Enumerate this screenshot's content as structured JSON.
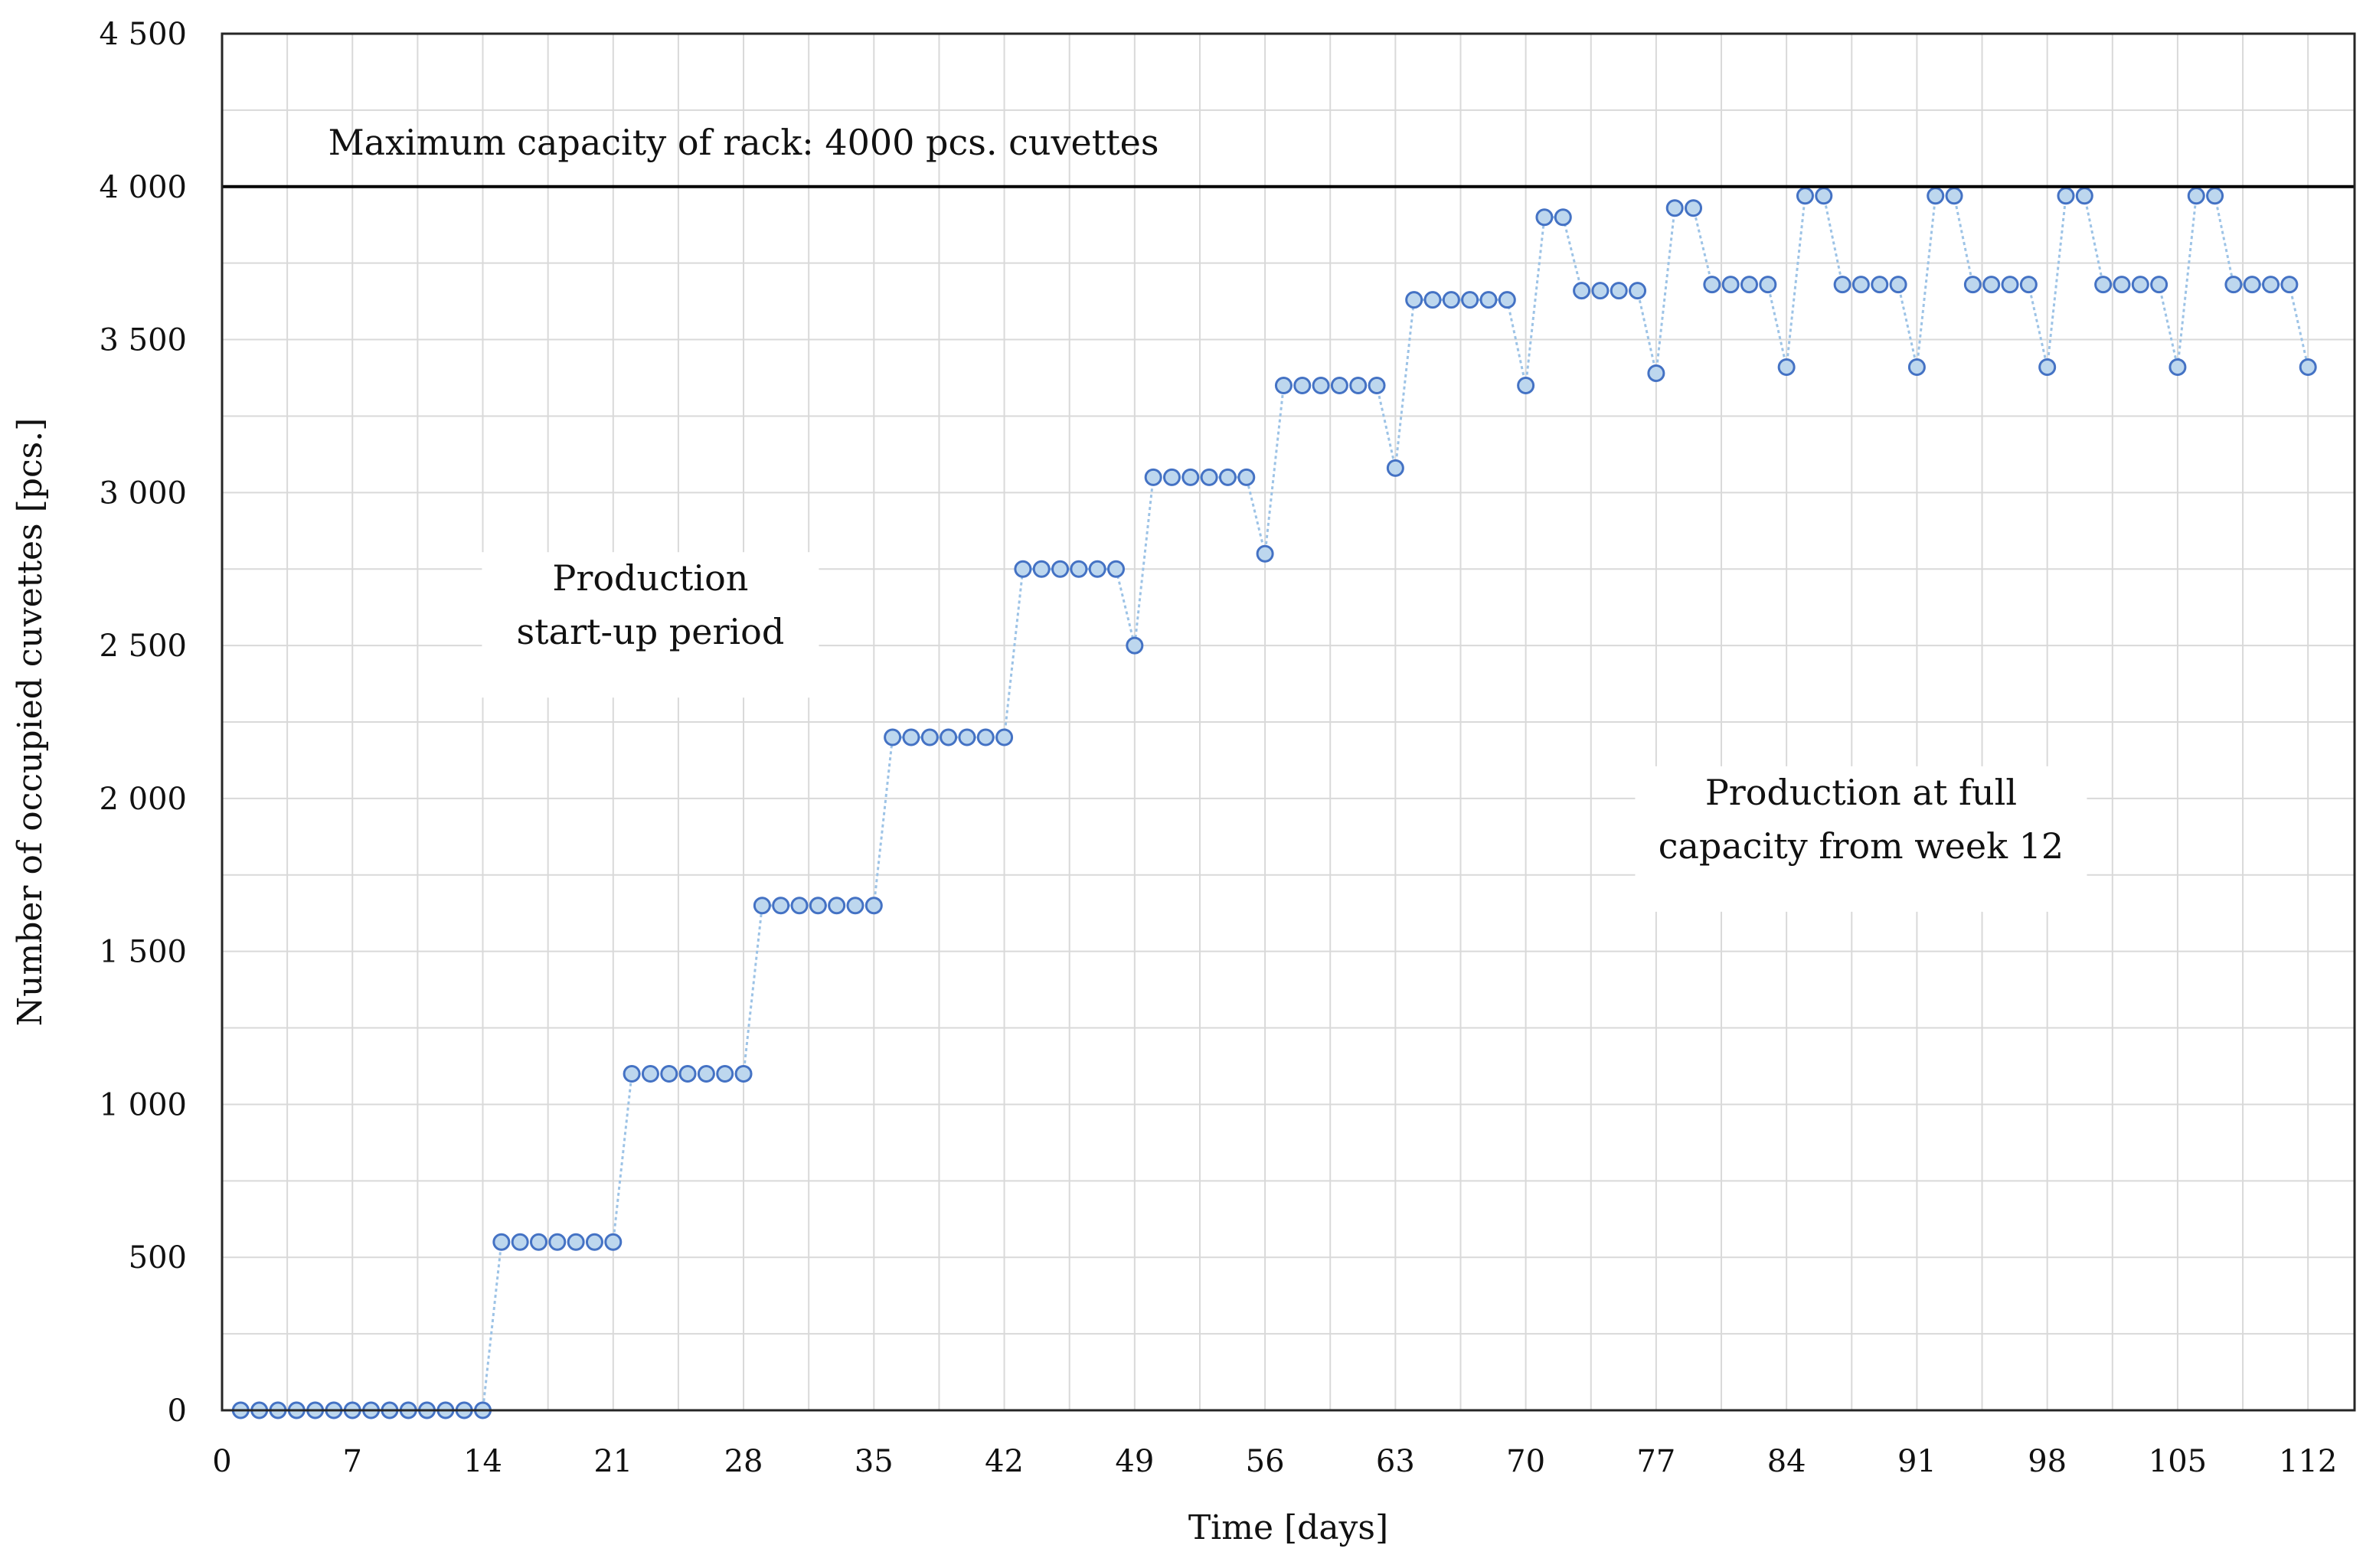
{
  "chart_data": {
    "type": "line",
    "title": "",
    "xlabel": "Time [days]",
    "ylabel": "Number of occupied cuvettes  [pcs.]",
    "xlim": [
      0,
      114.5
    ],
    "ylim": [
      0,
      4500
    ],
    "x_ticks": [
      0,
      7,
      14,
      21,
      28,
      35,
      42,
      49,
      56,
      63,
      70,
      77,
      84,
      91,
      98,
      105,
      112
    ],
    "x_tick_labels": [
      "0",
      "7",
      "14",
      "21",
      "28",
      "35",
      "42",
      "49",
      "56",
      "63",
      "70",
      "77",
      "84",
      "91",
      "98",
      "105",
      "112"
    ],
    "y_ticks": [
      0,
      500,
      1000,
      1500,
      2000,
      2500,
      3000,
      3500,
      4000,
      4500
    ],
    "y_tick_labels": [
      "0",
      "500",
      "1 000",
      "1 500",
      "2 000",
      "2 500",
      "3 000",
      "3 500",
      "4 000",
      "4 500"
    ],
    "grid": true,
    "reference_line": {
      "value": 4000,
      "label": "Maximum capacity of rack: 4000 pcs. cuvettes"
    },
    "annotations": [
      {
        "lines": [
          "Production",
          "start-up  period"
        ],
        "x": 23,
        "y": 2680
      },
      {
        "lines": [
          "Production  at full",
          "capacity from week  12"
        ],
        "x": 88,
        "y": 1980
      }
    ],
    "series": [
      {
        "name": "Occupied cuvettes",
        "x": [
          1,
          2,
          3,
          4,
          5,
          6,
          7,
          8,
          9,
          10,
          11,
          12,
          13,
          14,
          15,
          16,
          17,
          18,
          19,
          20,
          21,
          22,
          23,
          24,
          25,
          26,
          27,
          28,
          29,
          30,
          31,
          32,
          33,
          34,
          35,
          36,
          37,
          38,
          39,
          40,
          41,
          42,
          43,
          44,
          45,
          46,
          47,
          48,
          49,
          50,
          51,
          52,
          53,
          54,
          55,
          56,
          57,
          58,
          59,
          60,
          61,
          62,
          63,
          64,
          65,
          66,
          67,
          68,
          69,
          70,
          71,
          72,
          73,
          74,
          75,
          76,
          77,
          78,
          79,
          80,
          81,
          82,
          83,
          84,
          85,
          86,
          87,
          88,
          89,
          90,
          91,
          92,
          93,
          94,
          95,
          96,
          97,
          98,
          99,
          100,
          101,
          102,
          103,
          104,
          105,
          106,
          107,
          108,
          109,
          110,
          111,
          112
        ],
        "values": [
          0,
          0,
          0,
          0,
          0,
          0,
          0,
          0,
          0,
          0,
          0,
          0,
          0,
          0,
          550,
          550,
          550,
          550,
          550,
          550,
          550,
          1100,
          1100,
          1100,
          1100,
          1100,
          1100,
          1100,
          1650,
          1650,
          1650,
          1650,
          1650,
          1650,
          1650,
          2200,
          2200,
          2200,
          2200,
          2200,
          2200,
          2200,
          2750,
          2750,
          2750,
          2750,
          2750,
          2750,
          2500,
          3050,
          3050,
          3050,
          3050,
          3050,
          3050,
          2800,
          3350,
          3350,
          3350,
          3350,
          3350,
          3350,
          3080,
          3630,
          3630,
          3630,
          3630,
          3630,
          3630,
          3350,
          3900,
          3900,
          3660,
          3660,
          3660,
          3660,
          3390,
          3930,
          3930,
          3680,
          3680,
          3680,
          3680,
          3410,
          3970,
          3970,
          3680,
          3680,
          3680,
          3680,
          3410,
          3970,
          3970,
          3680,
          3680,
          3680,
          3680,
          3410,
          3970,
          3970,
          3680,
          3680,
          3680,
          3680,
          3410,
          3970,
          3970,
          3680,
          3680,
          3680,
          3680,
          3410
        ]
      }
    ]
  }
}
